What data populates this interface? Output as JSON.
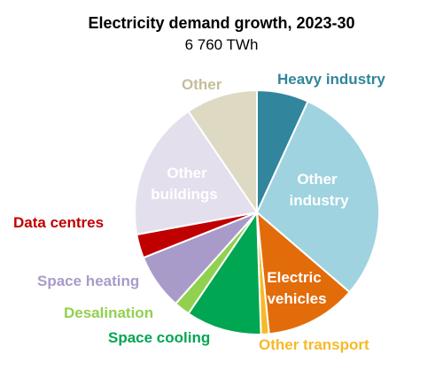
{
  "chart_data": {
    "type": "pie",
    "title": "Electricity demand growth, 2023-30",
    "subtitle": "6 760 TWh",
    "slices": [
      {
        "label": "Heavy industry",
        "value": 6.5,
        "color": "#31859c"
      },
      {
        "label": "Other industry",
        "value": 28.0,
        "color": "#9fd3e0"
      },
      {
        "label": "Electric vehicles",
        "value": 11.5,
        "color": "#e36c0a"
      },
      {
        "label": "Other transport",
        "value": 1.0,
        "color": "#f7b926"
      },
      {
        "label": "Space cooling",
        "value": 9.5,
        "color": "#00a651"
      },
      {
        "label": "Desalination",
        "value": 2.0,
        "color": "#92d050"
      },
      {
        "label": "Space heating",
        "value": 7.0,
        "color": "#a99bc9"
      },
      {
        "label": "Data centres",
        "value": 3.0,
        "color": "#c00000"
      },
      {
        "label": "Other buildings",
        "value": 17.5,
        "color": "#e4dfec"
      },
      {
        "label": "Other",
        "value": 9.0,
        "color": "#ddd9c3"
      }
    ]
  },
  "labels": {
    "heavy_industry": "Heavy industry",
    "other_industry_1": "Other",
    "other_industry_2": "industry",
    "electric_vehicles_1": "Electric",
    "electric_vehicles_2": "vehicles",
    "other_transport": "Other transport",
    "space_cooling": "Space cooling",
    "desalination": "Desalination",
    "space_heating": "Space heating",
    "data_centres": "Data centres",
    "other_buildings_1": "Other",
    "other_buildings_2": "buildings",
    "other": "Other"
  }
}
